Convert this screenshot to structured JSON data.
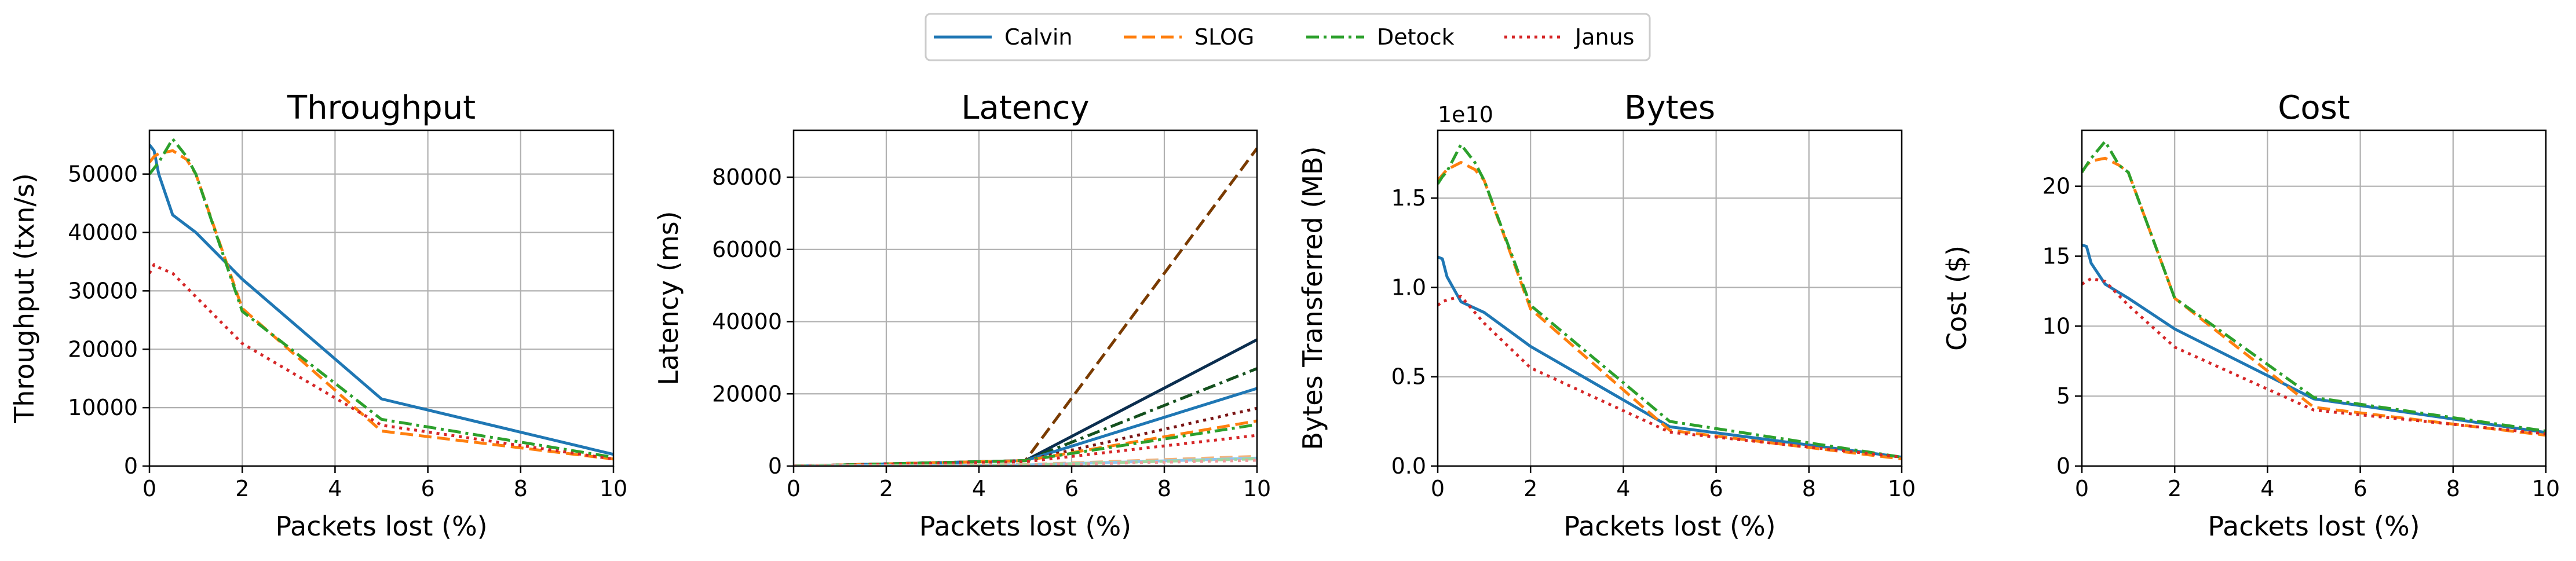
{
  "legend": [
    {
      "label": "Calvin",
      "color": "#1f77b4",
      "dash": "solid"
    },
    {
      "label": "SLOG",
      "color": "#ff7f0e",
      "dash": "dashed"
    },
    {
      "label": "Detock",
      "color": "#2ca02c",
      "dash": "dashdot"
    },
    {
      "label": "Janus",
      "color": "#d62728",
      "dash": "dotted"
    }
  ],
  "chart_data": [
    {
      "type": "line",
      "title": "Throughput",
      "xlabel": "Packets lost (%)",
      "ylabel": "Throughput (txn/s)",
      "xlim": [
        0,
        10
      ],
      "ylim": [
        0,
        57500
      ],
      "xticks": [
        "0",
        "2",
        "4",
        "6",
        "8",
        "10"
      ],
      "xtick_values": [
        0,
        2,
        4,
        6,
        8,
        10
      ],
      "yticks": [
        "0",
        "10000",
        "20000",
        "30000",
        "40000",
        "50000"
      ],
      "ytick_values": [
        0,
        10000,
        20000,
        30000,
        40000,
        50000
      ],
      "grid": true,
      "series": [
        {
          "name": "Calvin",
          "color": "#1f77b4",
          "dash": "solid",
          "x": [
            0,
            0.1,
            0.2,
            0.5,
            1,
            2,
            5,
            10
          ],
          "y": [
            55000,
            54000,
            50000,
            43000,
            40000,
            32000,
            11500,
            2000
          ]
        },
        {
          "name": "SLOG",
          "color": "#ff7f0e",
          "dash": "dashed",
          "x": [
            0,
            0.1,
            0.2,
            0.5,
            0.8,
            1,
            2,
            5,
            10
          ],
          "y": [
            52000,
            53000,
            53500,
            54000,
            52500,
            50000,
            27000,
            6000,
            1200
          ]
        },
        {
          "name": "Detock",
          "color": "#2ca02c",
          "dash": "dashdot",
          "x": [
            0,
            0.1,
            0.2,
            0.5,
            0.8,
            1,
            2,
            5,
            10
          ],
          "y": [
            50000,
            51000,
            52000,
            56000,
            53000,
            50000,
            26500,
            8000,
            1500
          ]
        },
        {
          "name": "Janus",
          "color": "#d62728",
          "dash": "dotted",
          "x": [
            0,
            0.1,
            0.2,
            0.5,
            1,
            2,
            5,
            10
          ],
          "y": [
            33000,
            34500,
            34000,
            33000,
            29000,
            21000,
            7000,
            1200
          ]
        }
      ]
    },
    {
      "type": "line",
      "title": "Latency",
      "xlabel": "Packets lost (%)",
      "ylabel": "Latency (ms)",
      "xlim": [
        0,
        10
      ],
      "ylim": [
        0,
        93000
      ],
      "xticks": [
        "0",
        "2",
        "4",
        "6",
        "8",
        "10"
      ],
      "xtick_values": [
        0,
        2,
        4,
        6,
        8,
        10
      ],
      "yticks": [
        "0",
        "20000",
        "40000",
        "60000",
        "80000"
      ],
      "ytick_values": [
        0,
        20000,
        40000,
        60000,
        80000
      ],
      "grid": true,
      "series": [
        {
          "color": "#7a3b00",
          "dash": "dashed",
          "x": [
            0,
            5,
            10
          ],
          "y": [
            0,
            1500,
            88000
          ]
        },
        {
          "color": "#0b2e4f",
          "dash": "solid",
          "x": [
            0,
            5,
            10
          ],
          "y": [
            0,
            1500,
            35000
          ]
        },
        {
          "color": "#14501e",
          "dash": "dashdot",
          "x": [
            0,
            5,
            10
          ],
          "y": [
            0,
            1500,
            27000
          ]
        },
        {
          "color": "#1f77b4",
          "dash": "solid",
          "x": [
            0,
            5,
            10
          ],
          "y": [
            0,
            1500,
            21500
          ]
        },
        {
          "color": "#7a1414",
          "dash": "dotted",
          "x": [
            0,
            5,
            10
          ],
          "y": [
            0,
            1500,
            16000
          ]
        },
        {
          "color": "#ff7f0e",
          "dash": "dashed",
          "x": [
            0,
            5,
            10
          ],
          "y": [
            0,
            1500,
            12500
          ]
        },
        {
          "color": "#2ca02c",
          "dash": "dashdot",
          "x": [
            0,
            5,
            10
          ],
          "y": [
            0,
            1500,
            11500
          ]
        },
        {
          "color": "#d62728",
          "dash": "dotted",
          "x": [
            0,
            5,
            10
          ],
          "y": [
            0,
            1200,
            8500
          ]
        },
        {
          "color": "#f3b37b",
          "dash": "dashed",
          "x": [
            0,
            5,
            10
          ],
          "y": [
            0,
            400,
            2700
          ]
        },
        {
          "color": "#8ec7f0",
          "dash": "solid",
          "x": [
            0,
            5,
            10
          ],
          "y": [
            0,
            300,
            2200
          ]
        },
        {
          "color": "#9fd89f",
          "dash": "dashdot",
          "x": [
            0,
            5,
            10
          ],
          "y": [
            0,
            300,
            2000
          ]
        },
        {
          "color": "#f09a9b",
          "dash": "dotted",
          "x": [
            0,
            5,
            10
          ],
          "y": [
            0,
            250,
            1600
          ]
        }
      ]
    },
    {
      "type": "line",
      "title": "Bytes",
      "xlabel": "Packets lost (%)",
      "ylabel": "Bytes Transferred (MB)",
      "offset_text": "1e10",
      "xlim": [
        0,
        10
      ],
      "ylim": [
        0,
        1.88
      ],
      "xticks": [
        "0",
        "2",
        "4",
        "6",
        "8",
        "10"
      ],
      "xtick_values": [
        0,
        2,
        4,
        6,
        8,
        10
      ],
      "yticks": [
        "0.0",
        "0.5",
        "1.0",
        "1.5"
      ],
      "ytick_values": [
        0,
        0.5,
        1.0,
        1.5
      ],
      "grid": true,
      "series": [
        {
          "name": "Calvin",
          "color": "#1f77b4",
          "dash": "solid",
          "x": [
            0,
            0.1,
            0.2,
            0.5,
            1,
            2,
            5,
            10
          ],
          "y": [
            1.17,
            1.16,
            1.06,
            0.92,
            0.86,
            0.67,
            0.22,
            0.05
          ]
        },
        {
          "name": "SLOG",
          "color": "#ff7f0e",
          "dash": "dashed",
          "x": [
            0,
            0.1,
            0.2,
            0.5,
            0.8,
            1,
            2,
            5,
            10
          ],
          "y": [
            1.6,
            1.63,
            1.66,
            1.7,
            1.66,
            1.6,
            0.88,
            0.2,
            0.04
          ]
        },
        {
          "name": "Detock",
          "color": "#2ca02c",
          "dash": "dashdot",
          "x": [
            0,
            0.1,
            0.2,
            0.5,
            0.8,
            1,
            2,
            5,
            10
          ],
          "y": [
            1.58,
            1.62,
            1.65,
            1.8,
            1.7,
            1.6,
            0.9,
            0.25,
            0.05
          ]
        },
        {
          "name": "Janus",
          "color": "#d62728",
          "dash": "dotted",
          "x": [
            0,
            0.1,
            0.2,
            0.5,
            1,
            2,
            5,
            10
          ],
          "y": [
            0.9,
            0.92,
            0.93,
            0.95,
            0.8,
            0.55,
            0.19,
            0.05
          ]
        }
      ]
    },
    {
      "type": "line",
      "title": "Cost",
      "xlabel": "Packets lost (%)",
      "ylabel": "Cost ($)",
      "xlim": [
        0,
        10
      ],
      "ylim": [
        0,
        24
      ],
      "xticks": [
        "0",
        "2",
        "4",
        "6",
        "8",
        "10"
      ],
      "xtick_values": [
        0,
        2,
        4,
        6,
        8,
        10
      ],
      "yticks": [
        "0",
        "5",
        "10",
        "15",
        "20"
      ],
      "ytick_values": [
        0,
        5,
        10,
        15,
        20
      ],
      "grid": true,
      "series": [
        {
          "name": "Calvin",
          "color": "#1f77b4",
          "dash": "solid",
          "x": [
            0,
            0.1,
            0.2,
            0.5,
            1,
            2,
            5,
            10
          ],
          "y": [
            15.8,
            15.7,
            14.5,
            13.0,
            12.0,
            9.8,
            4.8,
            2.4
          ]
        },
        {
          "name": "SLOG",
          "color": "#ff7f0e",
          "dash": "dashed",
          "x": [
            0,
            0.1,
            0.2,
            0.5,
            0.8,
            1,
            2,
            5,
            10
          ],
          "y": [
            21.0,
            21.5,
            21.8,
            22.0,
            21.5,
            21.0,
            12.0,
            4.2,
            2.2
          ]
        },
        {
          "name": "Detock",
          "color": "#2ca02c",
          "dash": "dashdot",
          "x": [
            0,
            0.1,
            0.2,
            0.5,
            0.8,
            1,
            2,
            5,
            10
          ],
          "y": [
            21.0,
            21.5,
            22.0,
            23.2,
            21.5,
            21.0,
            12.0,
            4.9,
            2.5
          ]
        },
        {
          "name": "Janus",
          "color": "#d62728",
          "dash": "dotted",
          "x": [
            0,
            0.1,
            0.2,
            0.5,
            1,
            2,
            5,
            10
          ],
          "y": [
            13.0,
            13.2,
            13.4,
            13.2,
            11.5,
            8.5,
            4.0,
            2.3
          ]
        }
      ]
    }
  ]
}
